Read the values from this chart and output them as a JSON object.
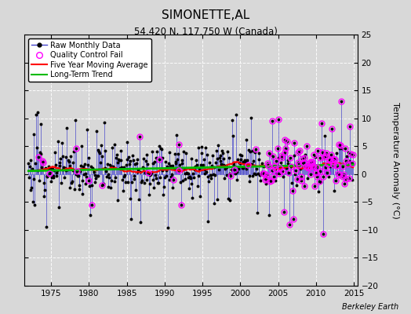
{
  "title": "SIMONETTE,AL",
  "subtitle": "54.420 N, 117.750 W (Canada)",
  "ylabel": "Temperature Anomaly (°C)",
  "watermark": "Berkeley Earth",
  "xlim": [
    1971.5,
    2015.5
  ],
  "ylim": [
    -20,
    25
  ],
  "yticks": [
    -20,
    -15,
    -10,
    -5,
    0,
    5,
    10,
    15,
    20,
    25
  ],
  "xticks": [
    1975,
    1980,
    1985,
    1990,
    1995,
    2000,
    2005,
    2010,
    2015
  ],
  "start_year": 1972,
  "end_year": 2014,
  "background_color": "#d8d8d8",
  "raw_color": "#4444cc",
  "raw_marker_color": "#000000",
  "qc_color": "#ff00ff",
  "moving_avg_color": "#ff0000",
  "trend_color": "#00bb00",
  "seed": 12
}
